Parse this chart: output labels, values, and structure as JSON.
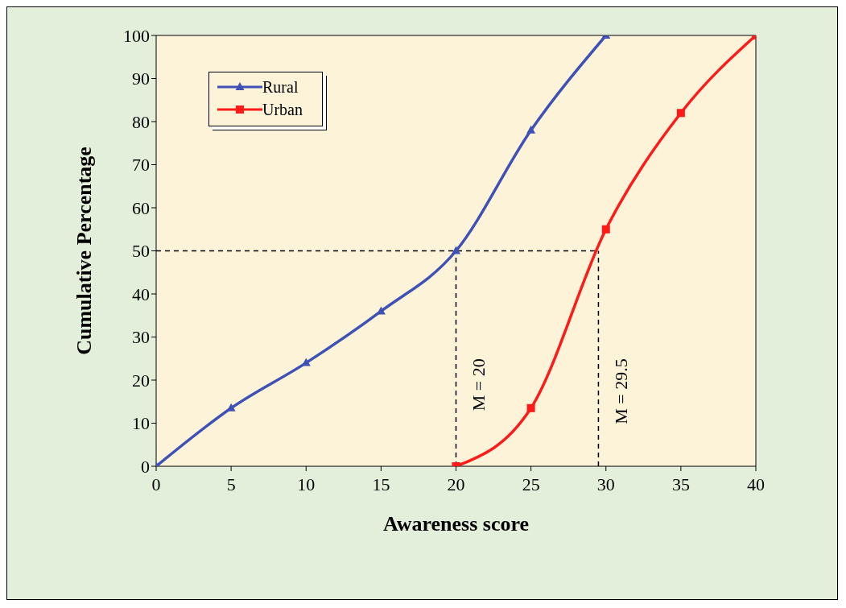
{
  "chart_data": {
    "type": "line",
    "xlabel": "Awareness score",
    "ylabel": "Cumulative Percentage",
    "xlim": [
      0,
      40
    ],
    "xticks": [
      0,
      5,
      10,
      15,
      20,
      25,
      30,
      35,
      40
    ],
    "ylim": [
      0,
      100
    ],
    "yticks": [
      0,
      10,
      20,
      30,
      40,
      50,
      60,
      70,
      80,
      90,
      100
    ],
    "grid": false,
    "legend": "top left",
    "line_style": "solid",
    "series": [
      {
        "name": "Rural",
        "color": "#3f51b5",
        "marker": "triangle",
        "x": [
          0,
          5,
          10,
          15,
          20,
          25,
          30
        ],
        "values": [
          0,
          13.5,
          24,
          36,
          50,
          78,
          100
        ]
      },
      {
        "name": "Urban",
        "color": "#ff1a1a",
        "marker": "square",
        "x": [
          20,
          25,
          30,
          35,
          40
        ],
        "values": [
          0,
          13.5,
          55,
          82,
          100
        ]
      }
    ],
    "ref_lines": [
      {
        "axis": "y",
        "value": 50,
        "label": null,
        "line_style": "dashed",
        "color": "#000000"
      },
      {
        "axis": "x",
        "value": 20,
        "label": "M = 20",
        "line_style": "dashed",
        "color": "#000000"
      },
      {
        "axis": "x",
        "value": 29.5,
        "label": "M = 29.5",
        "line_style": "dashed",
        "color": "#000000"
      }
    ]
  }
}
